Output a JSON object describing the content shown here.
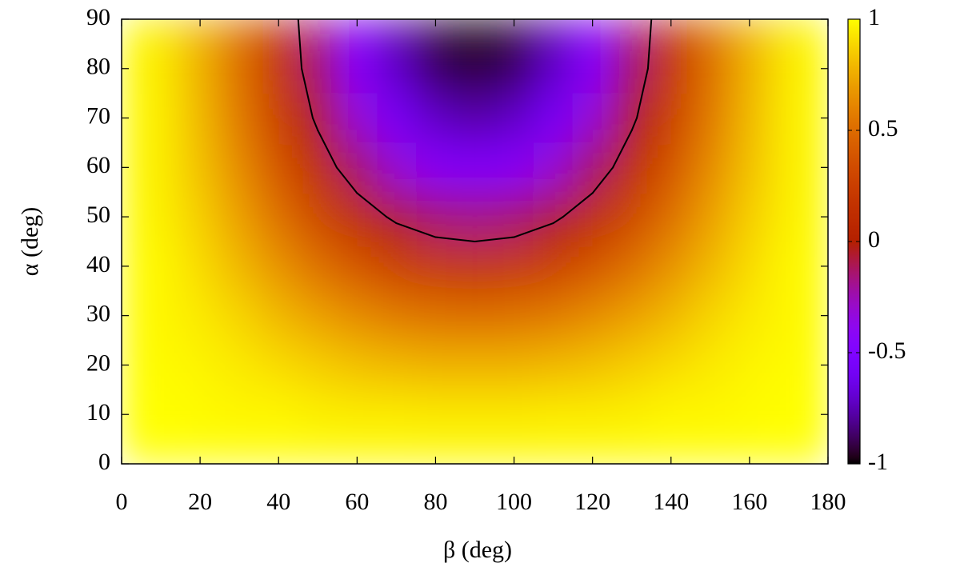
{
  "chart_data": {
    "type": "heatmap",
    "xlabel": "β (deg)",
    "ylabel": "α (deg)",
    "x": [
      0,
      10,
      20,
      30,
      40,
      50,
      60,
      70,
      80,
      90,
      100,
      110,
      120,
      130,
      140,
      150,
      160,
      170,
      180
    ],
    "y": [
      0,
      10,
      20,
      30,
      40,
      50,
      60,
      70,
      80,
      90
    ],
    "z": [
      [
        1,
        1,
        1,
        1,
        1,
        1,
        1,
        1,
        1,
        1,
        1,
        1,
        1,
        1,
        1,
        1,
        1,
        1,
        1
      ],
      [
        1,
        1,
        0.99,
        0.98,
        0.98,
        0.96,
        0.95,
        0.95,
        0.94,
        0.94,
        0.94,
        0.95,
        0.95,
        0.96,
        0.98,
        0.98,
        0.99,
        1,
        1
      ],
      [
        1,
        0.99,
        0.97,
        0.94,
        0.9,
        0.86,
        0.82,
        0.79,
        0.77,
        0.77,
        0.77,
        0.79,
        0.82,
        0.86,
        0.9,
        0.94,
        0.97,
        0.99,
        1
      ],
      [
        1,
        0.98,
        0.94,
        0.88,
        0.79,
        0.71,
        0.63,
        0.56,
        0.52,
        0.5,
        0.52,
        0.56,
        0.63,
        0.71,
        0.79,
        0.88,
        0.94,
        0.98,
        1
      ],
      [
        1,
        0.98,
        0.9,
        0.79,
        0.66,
        0.52,
        0.38,
        0.27,
        0.2,
        0.17,
        0.2,
        0.27,
        0.38,
        0.52,
        0.66,
        0.79,
        0.9,
        0.98,
        1
      ],
      [
        1,
        0.96,
        0.86,
        0.71,
        0.52,
        0.31,
        0.12,
        -0.04,
        -0.14,
        -0.17,
        -0.14,
        -0.04,
        0.12,
        0.31,
        0.52,
        0.71,
        0.86,
        0.96,
        1
      ],
      [
        1,
        0.95,
        0.82,
        0.63,
        0.38,
        0.12,
        -0.13,
        -0.32,
        -0.45,
        -0.5,
        -0.45,
        -0.32,
        -0.13,
        0.12,
        0.38,
        0.63,
        0.82,
        0.95,
        1
      ],
      [
        1,
        0.95,
        0.79,
        0.56,
        0.27,
        -0.04,
        -0.32,
        -0.56,
        -0.71,
        -0.77,
        -0.71,
        -0.56,
        -0.32,
        -0.04,
        0.27,
        0.56,
        0.79,
        0.95,
        1
      ],
      [
        1,
        0.94,
        0.77,
        0.52,
        0.2,
        -0.14,
        -0.45,
        -0.71,
        -0.88,
        -0.94,
        -0.88,
        -0.71,
        -0.45,
        -0.14,
        0.2,
        0.52,
        0.77,
        0.94,
        1
      ],
      [
        1,
        0.94,
        0.77,
        0.5,
        0.17,
        -0.17,
        -0.5,
        -0.77,
        -0.94,
        -1,
        -0.94,
        -0.77,
        -0.5,
        -0.17,
        0.17,
        0.5,
        0.77,
        0.94,
        1
      ]
    ],
    "xlim": [
      0,
      180
    ],
    "ylim": [
      0,
      90
    ],
    "xticks": [
      0,
      20,
      40,
      60,
      80,
      100,
      120,
      140,
      160,
      180
    ],
    "yticks": [
      0,
      10,
      20,
      30,
      40,
      50,
      60,
      70,
      80,
      90
    ],
    "cblim": [
      -1,
      1
    ],
    "cbticks": [
      -1,
      -0.5,
      0,
      0.5,
      1
    ],
    "palette": "gnuplot",
    "contour_levels": [
      0
    ],
    "contour_color": "#000000"
  }
}
